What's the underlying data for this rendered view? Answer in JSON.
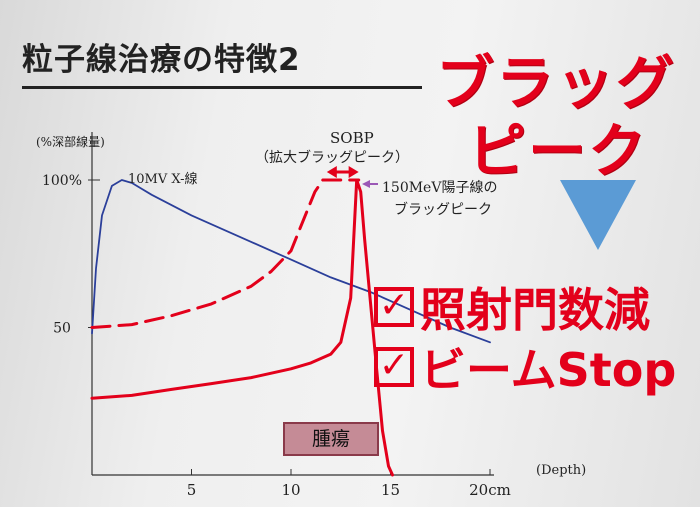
{
  "slide": {
    "title": "粒子線治療の特徴2",
    "bragg_peak_line1": "ブラッグ",
    "bragg_peak_line2": "ピーク",
    "benefit1": "照射門数減",
    "benefit2": "ビームStop",
    "check_mark": "✓",
    "colors": {
      "accent_red": "#e3001b",
      "xray_blue": "#2b3f9a",
      "arrow_blue": "#5b9bd5",
      "tumor_fill": "#c58b96"
    },
    "arrow_icon": "down-triangle-icon"
  },
  "chart_data": {
    "type": "line",
    "ylabel": "(%深部線量)",
    "xlabel": "(Depth)",
    "xlim": [
      0,
      20
    ],
    "ylim": [
      0,
      100
    ],
    "x_ticks": [
      {
        "value": 5,
        "label": "5"
      },
      {
        "value": 10,
        "label": "10"
      },
      {
        "value": 15,
        "label": "15"
      },
      {
        "value": 20,
        "label": "20cm"
      }
    ],
    "y_ticks": [
      {
        "value": 50,
        "label": "50"
      },
      {
        "value": 100,
        "label": "100%"
      }
    ],
    "series": [
      {
        "name": "10MV X-線",
        "color": "#2b3f9a",
        "style": "solid",
        "x": [
          0,
          0.2,
          0.5,
          1.0,
          1.5,
          2.0,
          2.5,
          3,
          5,
          8,
          10,
          12,
          14,
          16,
          18,
          20
        ],
        "y": [
          48,
          70,
          88,
          98,
          100,
          99,
          97,
          95,
          88,
          79,
          73,
          67,
          62,
          56,
          50,
          45
        ]
      },
      {
        "name": "150MeV陽子線のブラッグピーク",
        "color": "#e3001b",
        "style": "solid",
        "x": [
          0,
          2,
          4,
          6,
          8,
          10,
          11,
          12,
          12.5,
          13.0,
          13.3,
          13.5,
          13.7,
          14.0,
          14.3,
          14.6,
          14.9,
          15.1
        ],
        "y": [
          26,
          27,
          29,
          31,
          33,
          36,
          38,
          41,
          45,
          60,
          100,
          96,
          80,
          58,
          36,
          15,
          3,
          0
        ]
      },
      {
        "name": "SOBP",
        "color": "#e3001b",
        "style": "dashed",
        "x": [
          0,
          2,
          4,
          6,
          8,
          9,
          10,
          10.6,
          11.2,
          11.6,
          13.4
        ],
        "y": [
          50,
          51,
          54,
          58,
          64,
          69,
          76,
          86,
          96,
          100,
          100
        ]
      }
    ],
    "annotations": [
      {
        "text": "10MV X-線",
        "x": 1.5,
        "y": 100,
        "color": "#222"
      },
      {
        "text": "SOBP",
        "x": 13.0,
        "y": 130
      },
      {
        "text": "（拡大ブラッグピーク）",
        "x": 11.5,
        "y": 115
      },
      {
        "text": "150MeV陽子線の",
        "x": 14.5,
        "y": 99
      },
      {
        "text": "ブラッグピーク",
        "x": 15.2,
        "y": 91
      }
    ],
    "sobp_range": [
      11.8,
      13.4
    ],
    "tumor_label": "腫瘍",
    "tumor_range": [
      10,
      14.6
    ]
  }
}
